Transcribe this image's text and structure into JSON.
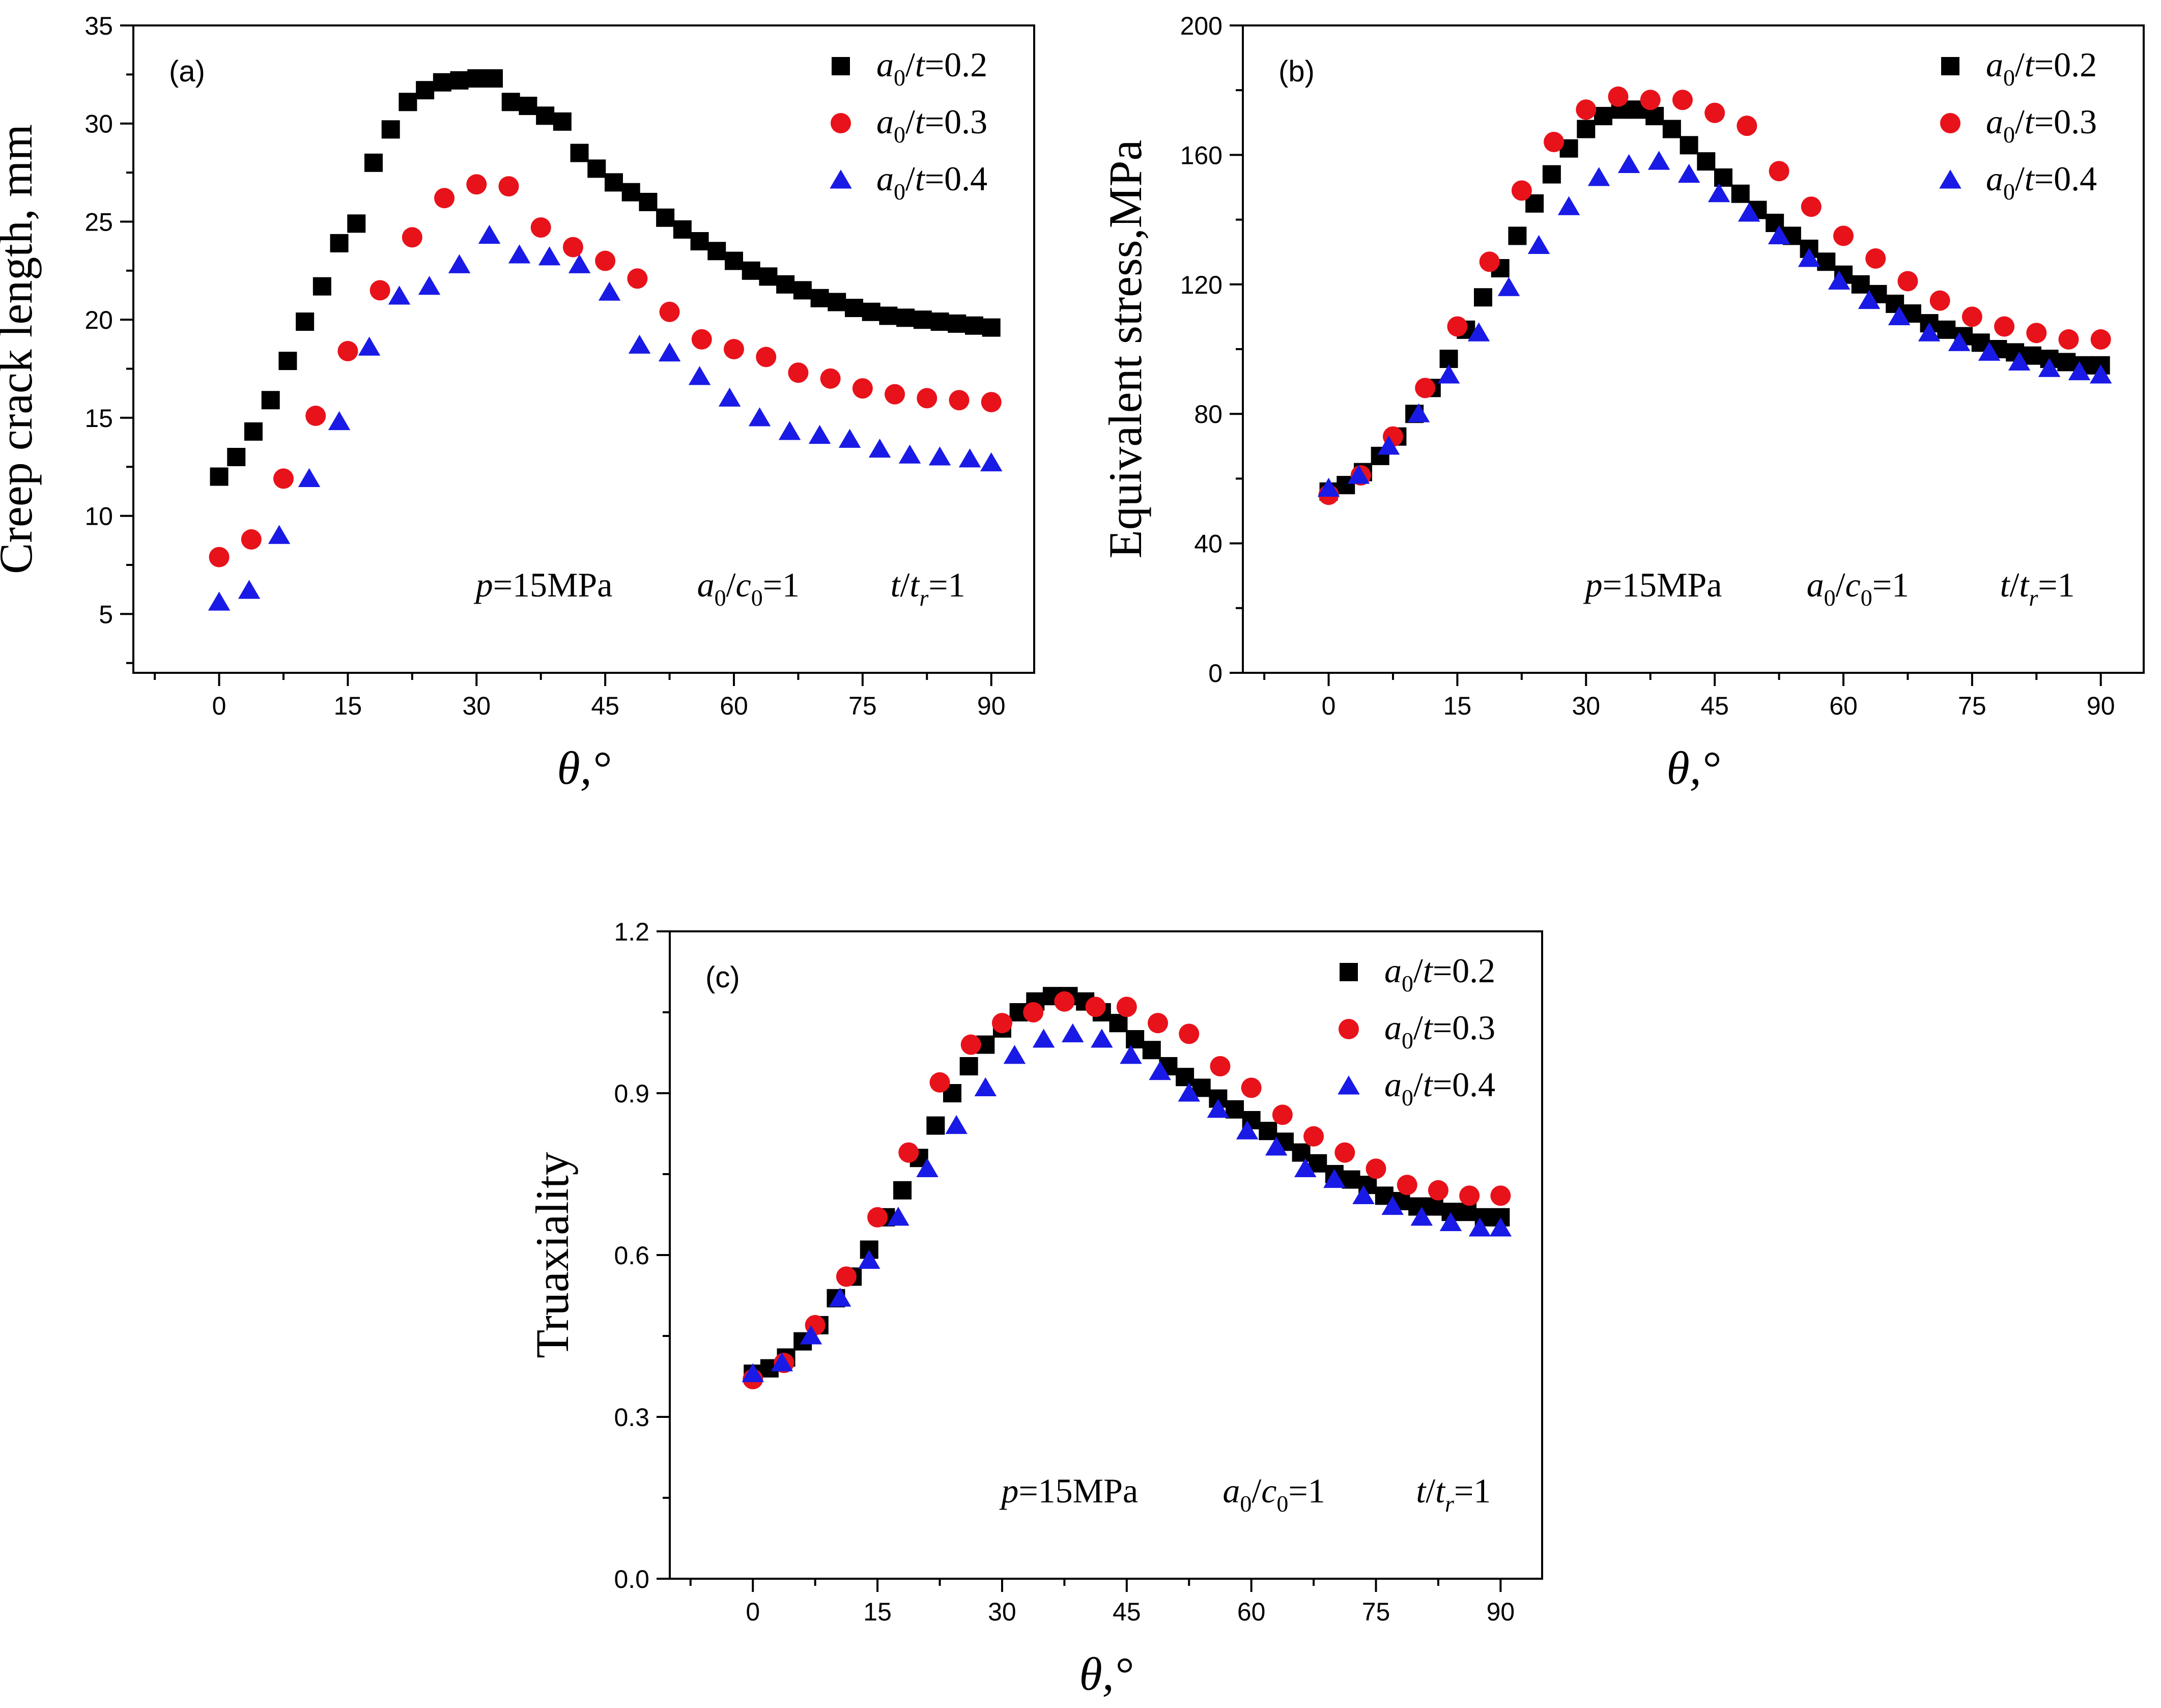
{
  "chart_data": [
    {
      "type": "scatter",
      "panel_label": "(a)",
      "xlabel": "θ,°",
      "ylabel": "Creep crack length, mm",
      "xlim": [
        -10,
        95
      ],
      "ylim": [
        2,
        35
      ],
      "xticks": [
        0,
        15,
        30,
        45,
        60,
        75,
        90
      ],
      "yticks": [
        5,
        10,
        15,
        20,
        25,
        30,
        35
      ],
      "tick_labels_x": [
        "0",
        "15",
        "30",
        "45",
        "60",
        "75",
        "90"
      ],
      "tick_labels_y": [
        "5",
        "10",
        "15",
        "20",
        "25",
        "30",
        "35"
      ],
      "legend_position": "top-right",
      "note": [
        "p=15MPa",
        "a0/c0=1",
        "t/tr=1"
      ],
      "series": [
        {
          "name": "a0/t=0.2",
          "color": "#000000",
          "marker": "square",
          "x": [
            0,
            2,
            4,
            6,
            8,
            10,
            12,
            14,
            16,
            18,
            20,
            22,
            24,
            26,
            28,
            30,
            32,
            34,
            36,
            38,
            40,
            42,
            44,
            46,
            48,
            50,
            52,
            54,
            56,
            58,
            60,
            62,
            64,
            66,
            68,
            70,
            72,
            74,
            76,
            78,
            80,
            82,
            84,
            86,
            88,
            90
          ],
          "y": [
            12.0,
            13.0,
            14.3,
            15.9,
            17.9,
            19.9,
            21.7,
            23.9,
            24.9,
            28.0,
            29.7,
            31.1,
            31.7,
            32.1,
            32.2,
            32.3,
            32.3,
            31.1,
            30.9,
            30.4,
            30.1,
            28.5,
            27.7,
            27.0,
            26.5,
            26.0,
            25.2,
            24.6,
            24.0,
            23.5,
            23.0,
            22.5,
            22.2,
            21.8,
            21.5,
            21.1,
            20.9,
            20.6,
            20.4,
            20.2,
            20.1,
            20.0,
            19.9,
            19.8,
            19.7,
            19.6
          ]
        },
        {
          "name": "a0/t=0.3",
          "color": "#e8121b",
          "marker": "circle",
          "x": [
            0,
            3.75,
            7.5,
            11.25,
            15,
            18.75,
            22.5,
            26.25,
            30,
            33.75,
            37.5,
            41.25,
            45,
            48.75,
            52.5,
            56.25,
            60,
            63.75,
            67.5,
            71.25,
            75,
            78.75,
            82.5,
            86.25,
            90
          ],
          "y": [
            7.9,
            8.8,
            11.9,
            15.1,
            18.4,
            21.5,
            24.2,
            26.2,
            26.9,
            26.8,
            24.7,
            23.7,
            23.0,
            22.1,
            20.4,
            19.0,
            18.5,
            18.1,
            17.3,
            17.0,
            16.5,
            16.2,
            16.0,
            15.9,
            15.8
          ]
        },
        {
          "name": "a0/t=0.4",
          "color": "#1a1ae6",
          "marker": "triangle",
          "x": [
            0,
            3.5,
            7,
            10.5,
            14,
            17.5,
            21,
            24.5,
            28,
            31.5,
            35,
            38.5,
            42,
            45.5,
            49,
            52.5,
            56,
            59.5,
            63,
            66.5,
            70,
            73.5,
            77,
            80.5,
            84,
            87.5,
            90
          ],
          "y": [
            5.6,
            6.2,
            9.0,
            11.9,
            14.8,
            18.6,
            21.2,
            21.7,
            22.8,
            24.3,
            23.3,
            23.2,
            22.8,
            21.4,
            18.7,
            18.3,
            17.1,
            16.0,
            15.0,
            14.3,
            14.1,
            13.9,
            13.4,
            13.1,
            13.0,
            12.9,
            12.7
          ]
        }
      ]
    },
    {
      "type": "scatter",
      "panel_label": "(b)",
      "xlabel": "θ,°",
      "ylabel": "Equivalent  stress,MPa",
      "xlim": [
        -10,
        95
      ],
      "ylim": [
        0,
        200
      ],
      "xticks": [
        0,
        15,
        30,
        45,
        60,
        75,
        90
      ],
      "yticks": [
        0,
        40,
        80,
        120,
        160,
        200
      ],
      "tick_labels_x": [
        "0",
        "15",
        "30",
        "45",
        "60",
        "75",
        "90"
      ],
      "tick_labels_y": [
        "0",
        "40",
        "80",
        "120",
        "160",
        "200"
      ],
      "legend_position": "top-right",
      "note": [
        "p=15MPa",
        "a0/c0=1",
        "t/tr=1"
      ],
      "series": [
        {
          "name": "a0/t=0.2",
          "color": "#000000",
          "marker": "square",
          "x": [
            0,
            2,
            4,
            6,
            8,
            10,
            12,
            14,
            16,
            18,
            20,
            22,
            24,
            26,
            28,
            30,
            32,
            34,
            36,
            38,
            40,
            42,
            44,
            46,
            48,
            50,
            52,
            54,
            56,
            58,
            60,
            62,
            64,
            66,
            68,
            70,
            72,
            74,
            76,
            78,
            80,
            82,
            84,
            86,
            88,
            90
          ],
          "y": [
            56,
            58,
            62,
            67,
            73,
            80,
            88,
            97,
            106,
            116,
            125,
            135,
            145,
            154,
            162,
            168,
            172,
            174,
            174,
            172,
            168,
            163,
            158,
            153,
            148,
            143,
            139,
            135,
            131,
            127,
            123,
            120,
            117,
            114,
            111,
            108,
            106,
            104,
            102,
            100,
            99,
            98,
            97,
            96,
            95,
            95
          ]
        },
        {
          "name": "a0/t=0.3",
          "color": "#e8121b",
          "marker": "circle",
          "x": [
            0,
            3.75,
            7.5,
            11.25,
            15,
            18.75,
            22.5,
            26.25,
            30,
            33.75,
            37.5,
            41.25,
            45,
            48.75,
            52.5,
            56.25,
            60,
            63.75,
            67.5,
            71.25,
            75,
            78.75,
            82.5,
            86.25,
            90
          ],
          "y": [
            55,
            61,
            73,
            88,
            107,
            127,
            149,
            164,
            174,
            178,
            177,
            177,
            173,
            169,
            155,
            144,
            135,
            128,
            121,
            115,
            110,
            107,
            105,
            103,
            103
          ]
        },
        {
          "name": "a0/t=0.4",
          "color": "#1a1ae6",
          "marker": "triangle",
          "x": [
            0,
            3.5,
            7,
            10.5,
            14,
            17.5,
            21,
            24.5,
            28,
            31.5,
            35,
            38.5,
            42,
            45.5,
            49,
            52.5,
            56,
            59.5,
            63,
            66.5,
            70,
            73.5,
            77,
            80.5,
            84,
            87.5,
            90
          ],
          "y": [
            57,
            61,
            70,
            80,
            92,
            105,
            119,
            132,
            144,
            153,
            157,
            158,
            154,
            148,
            142,
            135,
            128,
            121,
            115,
            110,
            105,
            102,
            99,
            96,
            94,
            93,
            92
          ]
        }
      ]
    },
    {
      "type": "scatter",
      "panel_label": "(c)",
      "xlabel": "θ,°",
      "ylabel": "Truaxiality",
      "xlim": [
        -10,
        95
      ],
      "ylim": [
        0,
        1.2
      ],
      "xticks": [
        0,
        15,
        30,
        45,
        60,
        75,
        90
      ],
      "yticks": [
        0,
        0.3,
        0.6,
        0.9,
        1.2
      ],
      "tick_labels_x": [
        "0",
        "15",
        "30",
        "45",
        "60",
        "75",
        "90"
      ],
      "tick_labels_y": [
        "0.0",
        "0.3",
        "0.6",
        "0.9",
        "1.2"
      ],
      "legend_position": "top-right",
      "note": [
        "p=15MPa",
        "a0/c0=1",
        "t/tr=1"
      ],
      "series": [
        {
          "name": "a0/t=0.2",
          "color": "#000000",
          "marker": "square",
          "x": [
            0,
            2,
            4,
            6,
            8,
            10,
            12,
            14,
            16,
            18,
            20,
            22,
            24,
            26,
            28,
            30,
            32,
            34,
            36,
            38,
            40,
            42,
            44,
            46,
            48,
            50,
            52,
            54,
            56,
            58,
            60,
            62,
            64,
            66,
            68,
            70,
            72,
            74,
            76,
            78,
            80,
            82,
            84,
            86,
            88,
            90
          ],
          "y": [
            0.38,
            0.39,
            0.41,
            0.44,
            0.47,
            0.52,
            0.56,
            0.61,
            0.67,
            0.72,
            0.78,
            0.84,
            0.9,
            0.95,
            0.99,
            1.02,
            1.05,
            1.07,
            1.08,
            1.08,
            1.07,
            1.05,
            1.03,
            1.0,
            0.98,
            0.95,
            0.93,
            0.91,
            0.89,
            0.87,
            0.85,
            0.83,
            0.81,
            0.79,
            0.77,
            0.75,
            0.74,
            0.73,
            0.71,
            0.7,
            0.69,
            0.69,
            0.68,
            0.68,
            0.67,
            0.67
          ]
        },
        {
          "name": "a0/t=0.3",
          "color": "#e8121b",
          "marker": "circle",
          "x": [
            0,
            3.75,
            7.5,
            11.25,
            15,
            18.75,
            22.5,
            26.25,
            30,
            33.75,
            37.5,
            41.25,
            45,
            48.75,
            52.5,
            56.25,
            60,
            63.75,
            67.5,
            71.25,
            75,
            78.75,
            82.5,
            86.25,
            90
          ],
          "y": [
            0.37,
            0.4,
            0.47,
            0.56,
            0.67,
            0.79,
            0.92,
            0.99,
            1.03,
            1.05,
            1.07,
            1.06,
            1.06,
            1.03,
            1.01,
            0.95,
            0.91,
            0.86,
            0.82,
            0.79,
            0.76,
            0.73,
            0.72,
            0.71,
            0.71
          ]
        },
        {
          "name": "a0/t=0.4",
          "color": "#1a1ae6",
          "marker": "triangle",
          "x": [
            0,
            3.5,
            7,
            10.5,
            14,
            17.5,
            21,
            24.5,
            28,
            31.5,
            35,
            38.5,
            42,
            45.5,
            49,
            52.5,
            56,
            59.5,
            63,
            66.5,
            70,
            73.5,
            77,
            80.5,
            84,
            87.5,
            90
          ],
          "y": [
            0.38,
            0.4,
            0.45,
            0.52,
            0.59,
            0.67,
            0.76,
            0.84,
            0.91,
            0.97,
            1.0,
            1.01,
            1.0,
            0.97,
            0.94,
            0.9,
            0.87,
            0.83,
            0.8,
            0.76,
            0.74,
            0.71,
            0.69,
            0.67,
            0.66,
            0.65,
            0.65
          ]
        }
      ]
    }
  ]
}
